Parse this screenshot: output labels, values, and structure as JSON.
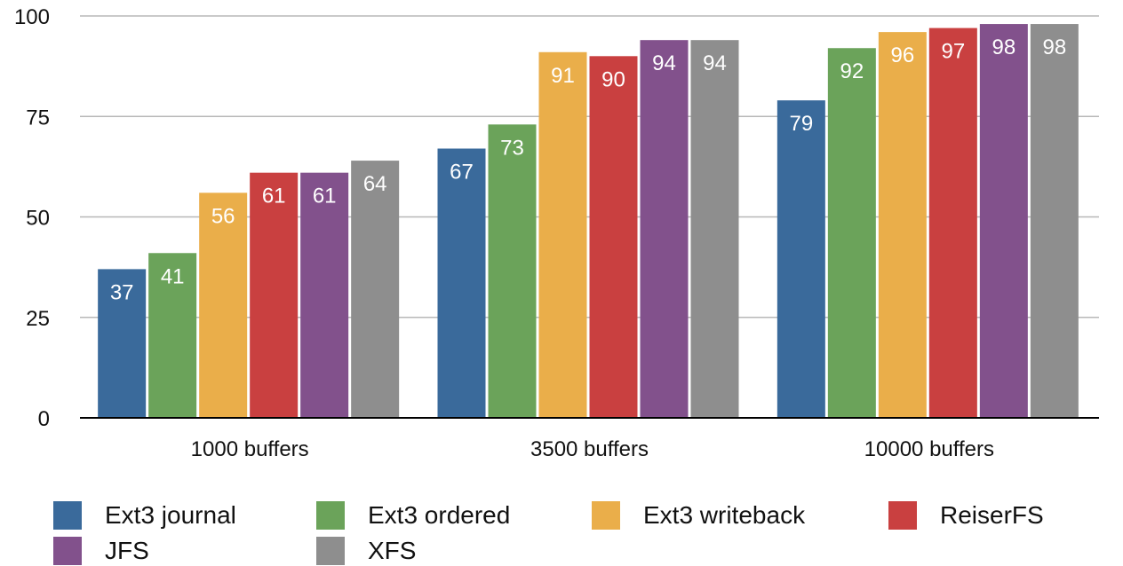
{
  "chart_data": {
    "type": "bar",
    "title": "",
    "xlabel": "",
    "ylabel": "",
    "categories": [
      "1000 buffers",
      "3500 buffers",
      "10000 buffers"
    ],
    "ylim": [
      0,
      100
    ],
    "yticks": [
      0,
      25,
      50,
      75,
      100
    ],
    "grid": true,
    "legend_position": "bottom",
    "series": [
      {
        "name": "Ext3 journal",
        "color": "#3A6A9B",
        "values": [
          37,
          67,
          79
        ]
      },
      {
        "name": "Ext3 ordered",
        "color": "#6BA35A",
        "values": [
          41,
          73,
          92
        ]
      },
      {
        "name": "Ext3 writeback",
        "color": "#EAAE4A",
        "values": [
          56,
          91,
          96
        ]
      },
      {
        "name": "ReiserFS",
        "color": "#C94040",
        "values": [
          61,
          90,
          97
        ]
      },
      {
        "name": "JFS",
        "color": "#82518C",
        "values": [
          61,
          94,
          98
        ]
      },
      {
        "name": "XFS",
        "color": "#8E8E8E",
        "values": [
          64,
          94,
          98
        ]
      }
    ]
  }
}
